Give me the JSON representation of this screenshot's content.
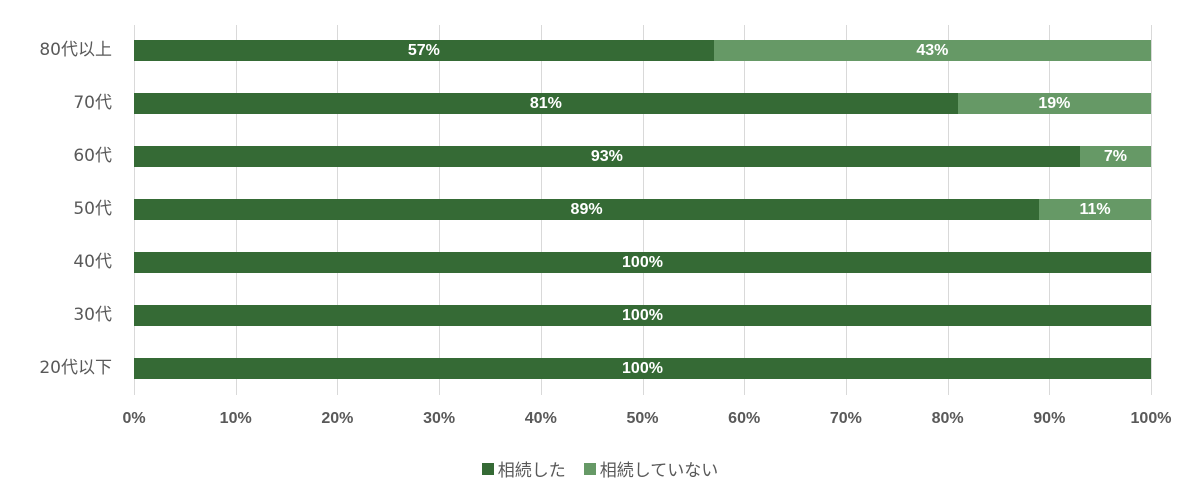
{
  "chart_data": {
    "type": "bar",
    "orientation": "horizontal",
    "stacked": true,
    "percent_stacked": true,
    "title": "",
    "xlabel": "",
    "ylabel": "",
    "xlim": [
      0,
      100
    ],
    "grid": true,
    "legend_position": "bottom",
    "categories": [
      "80代以上",
      "70代",
      "60代",
      "50代",
      "40代",
      "30代",
      "20代以下"
    ],
    "x_ticks": [
      "0%",
      "10%",
      "20%",
      "30%",
      "40%",
      "50%",
      "60%",
      "70%",
      "80%",
      "90%",
      "100%"
    ],
    "series": [
      {
        "name": "相続した",
        "color": "#356a35",
        "values": [
          57,
          81,
          93,
          89,
          100,
          100,
          100
        ],
        "labels": [
          "57%",
          "81%",
          "93%",
          "89%",
          "100%",
          "100%",
          "100%"
        ]
      },
      {
        "name": "相続していない",
        "color": "#669966",
        "values": [
          43,
          19,
          7,
          11,
          0,
          0,
          0
        ],
        "labels": [
          "43%",
          "19%",
          "7%",
          "11%",
          "",
          "",
          ""
        ]
      }
    ]
  },
  "legend": {
    "items": [
      {
        "label": "相続した",
        "color": "#356a35"
      },
      {
        "label": "相続していない",
        "color": "#669966"
      }
    ]
  }
}
